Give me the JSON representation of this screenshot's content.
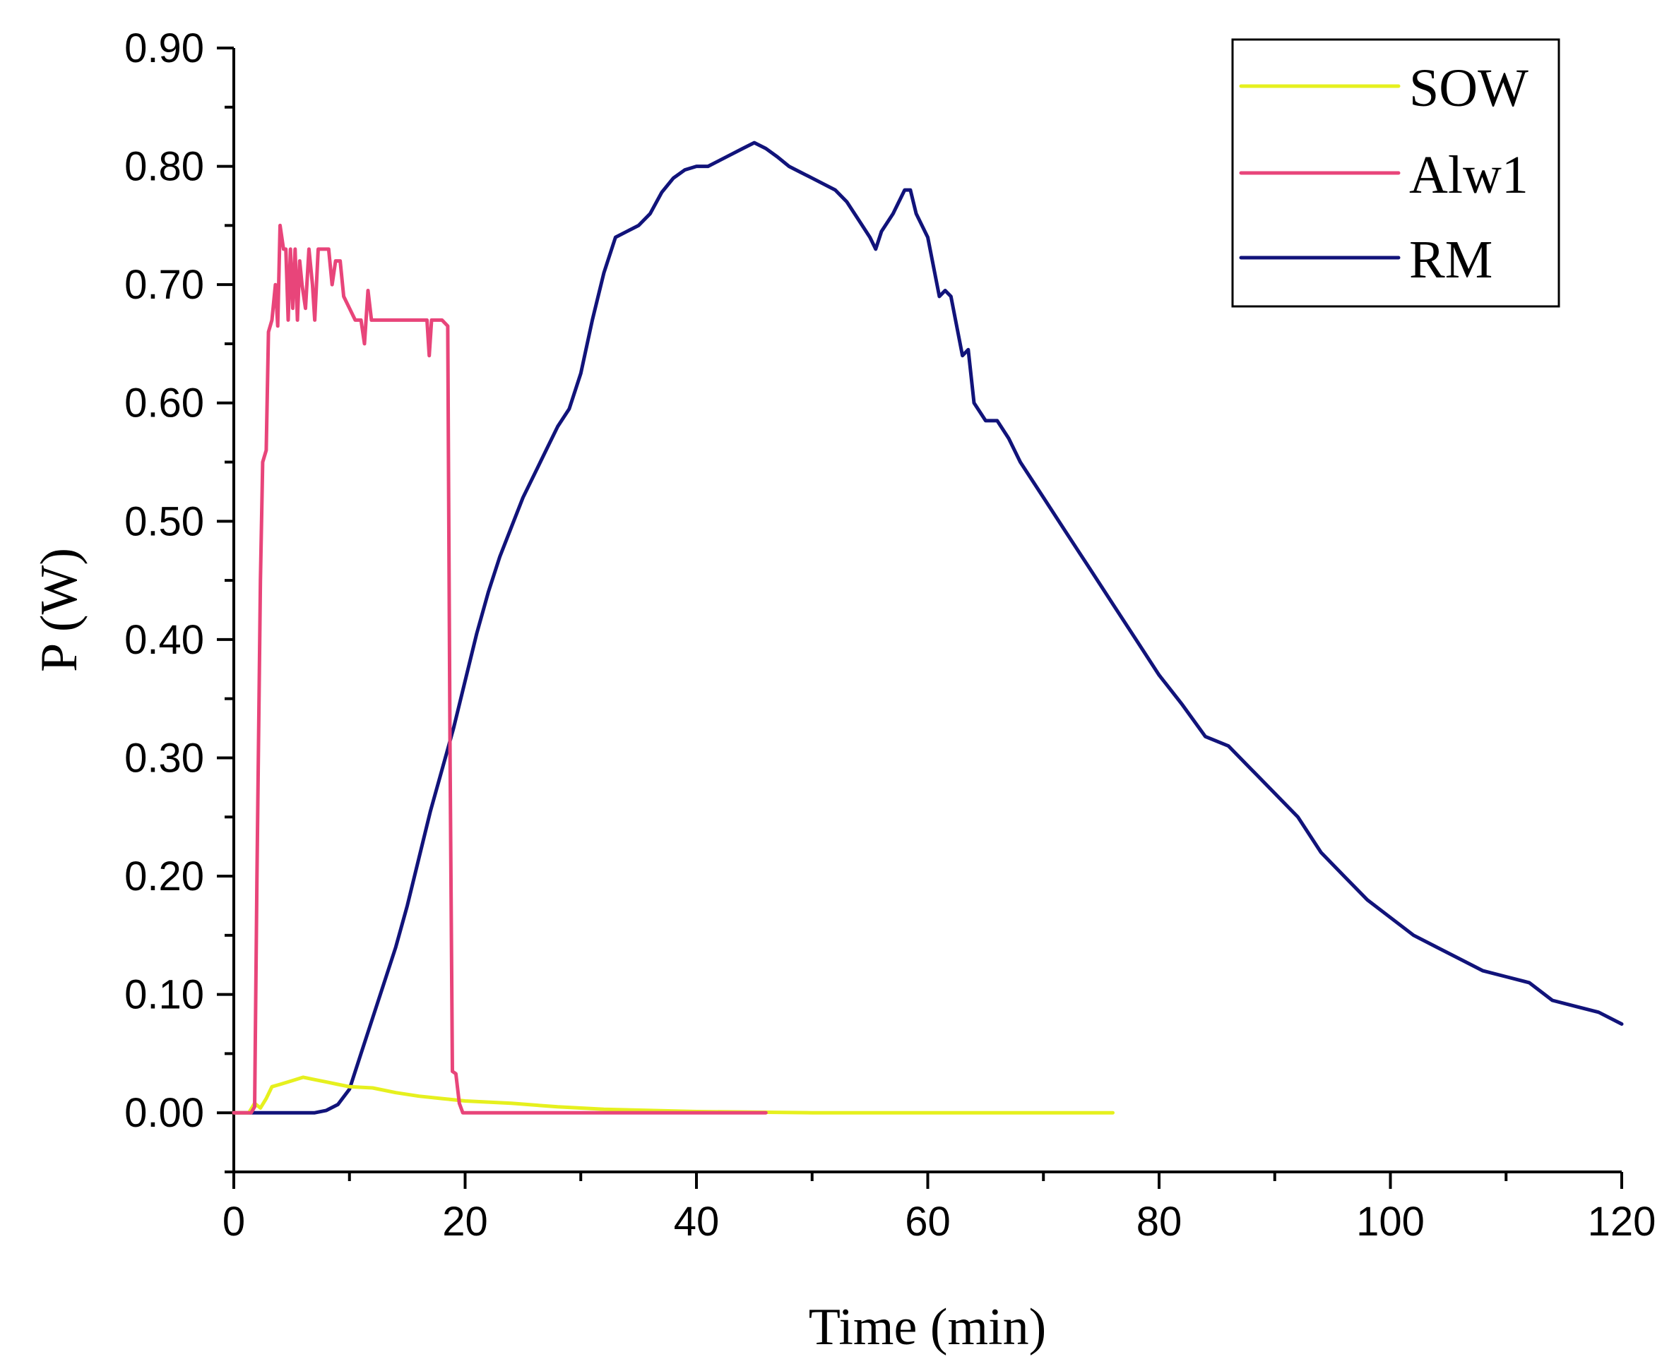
{
  "chart_data": {
    "type": "line",
    "xlabel": "Time (min)",
    "ylabel": "P (W)",
    "xlim": [
      0,
      120
    ],
    "ylim": [
      -0.05,
      0.9
    ],
    "x_ticks": [
      "0",
      "20",
      "40",
      "60",
      "80",
      "100",
      "120"
    ],
    "y_ticks": [
      "0.00",
      "0.10",
      "0.20",
      "0.30",
      "0.40",
      "0.50",
      "0.60",
      "0.70",
      "0.80",
      "0.90"
    ],
    "grid": false,
    "legend_position": "top-right",
    "series": [
      {
        "name": "SOW",
        "color": "#e6f01e",
        "points": [
          [
            0,
            0
          ],
          [
            1.3,
            0
          ],
          [
            1.8,
            0.008
          ],
          [
            2.3,
            0.004
          ],
          [
            2.8,
            0.012
          ],
          [
            3.3,
            0.022
          ],
          [
            4,
            0.024
          ],
          [
            5,
            0.027
          ],
          [
            6,
            0.03
          ],
          [
            7,
            0.028
          ],
          [
            8,
            0.026
          ],
          [
            9,
            0.024
          ],
          [
            10,
            0.022
          ],
          [
            12,
            0.021
          ],
          [
            14,
            0.017
          ],
          [
            16,
            0.014
          ],
          [
            18,
            0.012
          ],
          [
            20,
            0.01
          ],
          [
            24,
            0.008
          ],
          [
            28,
            0.005
          ],
          [
            32,
            0.003
          ],
          [
            36,
            0.002
          ],
          [
            40,
            0.001
          ],
          [
            50,
            0
          ],
          [
            60,
            0
          ],
          [
            76,
            0
          ]
        ]
      },
      {
        "name": "Alw1",
        "color": "#e8457a",
        "points": [
          [
            0,
            0
          ],
          [
            1.5,
            0
          ],
          [
            1.8,
            0.005
          ],
          [
            2,
            0.2
          ],
          [
            2.3,
            0.45
          ],
          [
            2.5,
            0.55
          ],
          [
            2.8,
            0.56
          ],
          [
            3,
            0.66
          ],
          [
            3.3,
            0.67
          ],
          [
            3.6,
            0.7
          ],
          [
            3.8,
            0.665
          ],
          [
            4,
            0.75
          ],
          [
            4.3,
            0.73
          ],
          [
            4.5,
            0.73
          ],
          [
            4.7,
            0.67
          ],
          [
            4.9,
            0.73
          ],
          [
            5.1,
            0.68
          ],
          [
            5.3,
            0.73
          ],
          [
            5.5,
            0.67
          ],
          [
            5.7,
            0.72
          ],
          [
            5.9,
            0.7
          ],
          [
            6.2,
            0.68
          ],
          [
            6.5,
            0.73
          ],
          [
            6.8,
            0.7
          ],
          [
            7,
            0.67
          ],
          [
            7.3,
            0.73
          ],
          [
            7.8,
            0.73
          ],
          [
            8.2,
            0.73
          ],
          [
            8.5,
            0.7
          ],
          [
            8.8,
            0.72
          ],
          [
            9.2,
            0.72
          ],
          [
            9.5,
            0.69
          ],
          [
            10,
            0.68
          ],
          [
            10.5,
            0.67
          ],
          [
            11,
            0.67
          ],
          [
            11.3,
            0.65
          ],
          [
            11.6,
            0.695
          ],
          [
            11.9,
            0.67
          ],
          [
            13,
            0.67
          ],
          [
            15,
            0.67
          ],
          [
            16.7,
            0.67
          ],
          [
            16.9,
            0.64
          ],
          [
            17.1,
            0.67
          ],
          [
            17.5,
            0.67
          ],
          [
            18,
            0.67
          ],
          [
            18.5,
            0.665
          ],
          [
            18.7,
            0.3
          ],
          [
            18.9,
            0.035
          ],
          [
            19.2,
            0.033
          ],
          [
            19.5,
            0.008
          ],
          [
            19.8,
            0
          ],
          [
            25,
            0
          ],
          [
            35,
            0
          ],
          [
            46,
            0
          ]
        ]
      },
      {
        "name": "RM",
        "color": "#11137a",
        "points": [
          [
            0,
            0
          ],
          [
            7,
            0
          ],
          [
            8,
            0.002
          ],
          [
            9,
            0.007
          ],
          [
            10,
            0.02
          ],
          [
            11,
            0.05
          ],
          [
            12,
            0.08
          ],
          [
            13,
            0.11
          ],
          [
            14,
            0.14
          ],
          [
            15,
            0.175
          ],
          [
            16,
            0.215
          ],
          [
            17,
            0.255
          ],
          [
            18,
            0.29
          ],
          [
            19,
            0.325
          ],
          [
            20,
            0.365
          ],
          [
            21,
            0.405
          ],
          [
            22,
            0.44
          ],
          [
            23,
            0.47
          ],
          [
            24,
            0.495
          ],
          [
            25,
            0.52
          ],
          [
            26,
            0.54
          ],
          [
            27,
            0.56
          ],
          [
            28,
            0.58
          ],
          [
            29,
            0.595
          ],
          [
            30,
            0.625
          ],
          [
            31,
            0.67
          ],
          [
            32,
            0.71
          ],
          [
            33,
            0.74
          ],
          [
            34,
            0.745
          ],
          [
            35,
            0.75
          ],
          [
            36,
            0.76
          ],
          [
            37,
            0.778
          ],
          [
            38,
            0.79
          ],
          [
            39,
            0.797
          ],
          [
            40,
            0.8
          ],
          [
            41,
            0.8
          ],
          [
            42,
            0.805
          ],
          [
            43,
            0.81
          ],
          [
            44,
            0.815
          ],
          [
            45,
            0.82
          ],
          [
            46,
            0.815
          ],
          [
            47,
            0.808
          ],
          [
            48,
            0.8
          ],
          [
            49,
            0.795
          ],
          [
            50,
            0.79
          ],
          [
            51,
            0.785
          ],
          [
            52,
            0.78
          ],
          [
            53,
            0.77
          ],
          [
            54,
            0.755
          ],
          [
            55,
            0.74
          ],
          [
            55.5,
            0.73
          ],
          [
            56,
            0.745
          ],
          [
            57,
            0.76
          ],
          [
            58,
            0.78
          ],
          [
            58.5,
            0.78
          ],
          [
            59,
            0.76
          ],
          [
            60,
            0.74
          ],
          [
            61,
            0.69
          ],
          [
            61.5,
            0.695
          ],
          [
            62,
            0.69
          ],
          [
            63,
            0.64
          ],
          [
            63.5,
            0.645
          ],
          [
            64,
            0.6
          ],
          [
            65,
            0.585
          ],
          [
            66,
            0.585
          ],
          [
            67,
            0.57
          ],
          [
            68,
            0.55
          ],
          [
            70,
            0.52
          ],
          [
            72,
            0.49
          ],
          [
            74,
            0.46
          ],
          [
            76,
            0.43
          ],
          [
            78,
            0.4
          ],
          [
            80,
            0.37
          ],
          [
            82,
            0.345
          ],
          [
            84,
            0.318
          ],
          [
            86,
            0.31
          ],
          [
            88,
            0.29
          ],
          [
            90,
            0.27
          ],
          [
            92,
            0.25
          ],
          [
            94,
            0.22
          ],
          [
            96,
            0.2
          ],
          [
            98,
            0.18
          ],
          [
            100,
            0.165
          ],
          [
            102,
            0.15
          ],
          [
            104,
            0.14
          ],
          [
            106,
            0.13
          ],
          [
            108,
            0.12
          ],
          [
            110,
            0.115
          ],
          [
            112,
            0.11
          ],
          [
            114,
            0.095
          ],
          [
            116,
            0.09
          ],
          [
            118,
            0.085
          ],
          [
            120,
            0.075
          ]
        ]
      }
    ]
  }
}
